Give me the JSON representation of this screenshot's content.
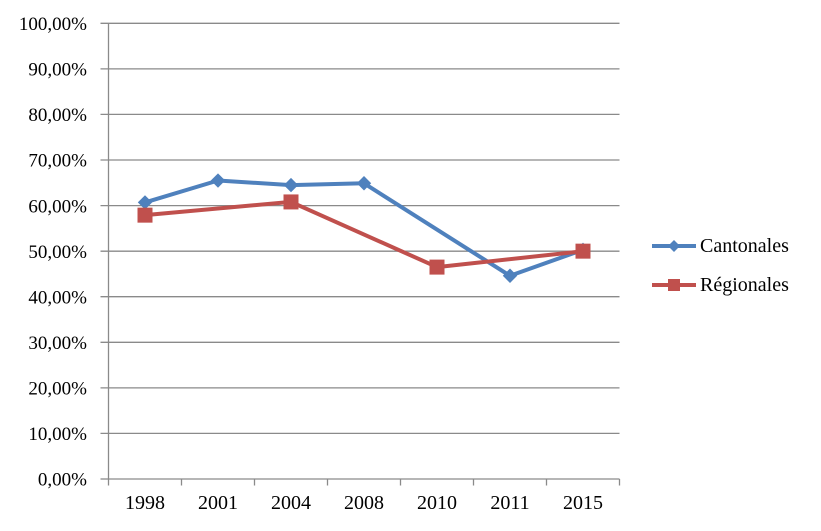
{
  "chart_data": {
    "type": "line",
    "categories": [
      "1998",
      "2001",
      "2004",
      "2008",
      "2010",
      "2011",
      "2015"
    ],
    "series": [
      {
        "name": "Cantonales",
        "color": "#4F81BD",
        "marker": "diamond",
        "values": [
          60.7,
          65.5,
          64.5,
          64.9,
          null,
          44.6,
          50.3
        ]
      },
      {
        "name": "Régionales",
        "color": "#C0504D",
        "marker": "square",
        "values": [
          57.9,
          null,
          60.8,
          null,
          46.5,
          null,
          50.0
        ]
      }
    ],
    "title": "",
    "xlabel": "",
    "ylabel": "",
    "ylim": [
      0,
      100
    ],
    "ytick_step": 10,
    "ytick_labels": [
      "0,00%",
      "10,00%",
      "20,00%",
      "30,00%",
      "40,00%",
      "50,00%",
      "60,00%",
      "70,00%",
      "80,00%",
      "90,00%",
      "100,00%"
    ],
    "grid": true,
    "legend_position": "right"
  },
  "colors": {
    "gridline": "#8A8A8A",
    "axis": "#8A8A8A",
    "background": "#FFFFFF",
    "text": "#000000"
  }
}
